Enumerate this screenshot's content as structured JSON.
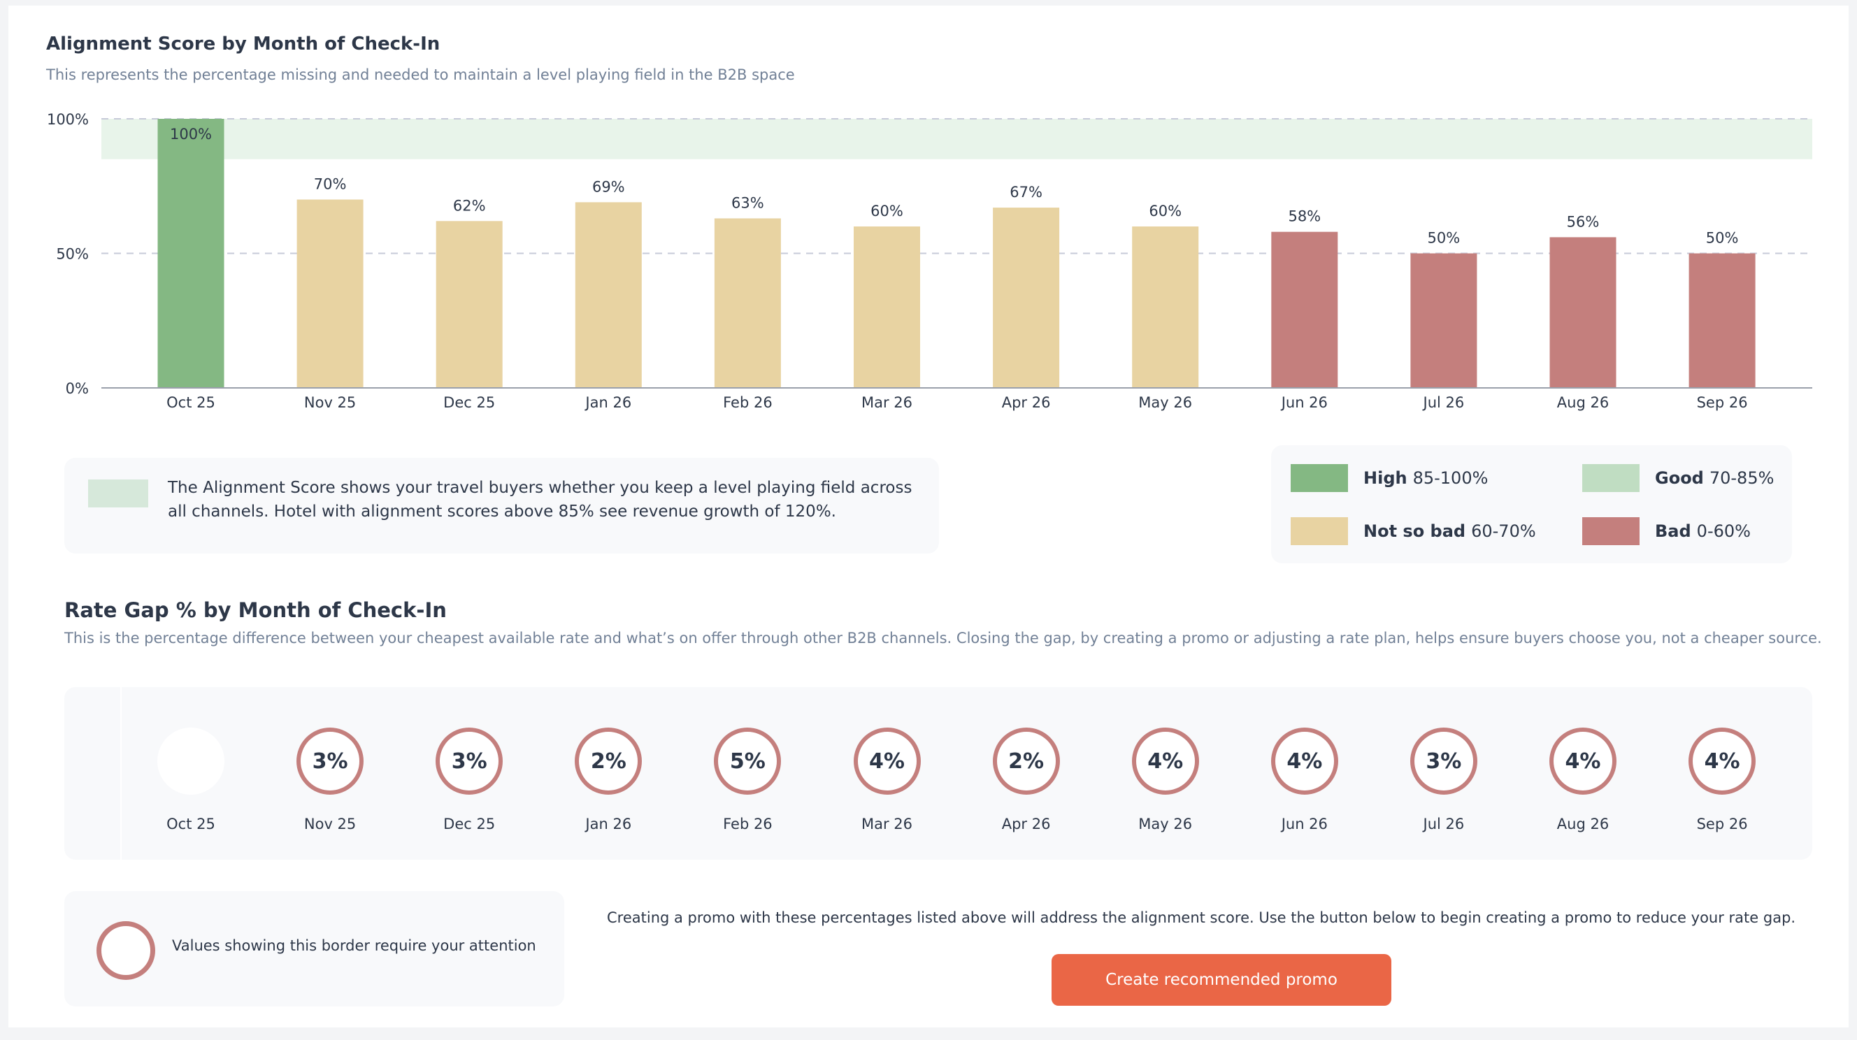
{
  "alignment": {
    "title": "Alignment Score by Month of Check-In",
    "subtitle": "This represents the percentage missing and needed to maintain a level playing field in the B2B space",
    "info_text": "The Alignment Score shows your travel buyers whether you keep a level playing field across all channels. Hotel with alignment scores above 85% see revenue growth of 120%.",
    "legend": [
      {
        "label": "High",
        "range": "85-100%",
        "color": "#84b883"
      },
      {
        "label": "Good",
        "range": "70-85%",
        "color": "#c0ddc2"
      },
      {
        "label": "Not so bad",
        "range": "60-70%",
        "color": "#e8d3a2"
      },
      {
        "label": "Bad",
        "range": "0-60%",
        "color": "#c47f7d"
      }
    ]
  },
  "chart_data": {
    "type": "bar",
    "title": "Alignment Score by Month of Check-In",
    "xlabel": "",
    "ylabel": "",
    "categories": [
      "Oct 25",
      "Nov 25",
      "Dec 25",
      "Jan 26",
      "Feb 26",
      "Mar 26",
      "Apr 26",
      "May 26",
      "Jun 26",
      "Jul 26",
      "Aug 26",
      "Sep 26"
    ],
    "values": [
      100,
      70,
      62,
      69,
      63,
      60,
      67,
      60,
      58,
      50,
      56,
      50
    ],
    "data_labels": [
      "100%",
      "70%",
      "62%",
      "69%",
      "63%",
      "60%",
      "67%",
      "60%",
      "58%",
      "50%",
      "56%",
      "50%"
    ],
    "bar_categories": [
      "High",
      "Not so bad",
      "Not so bad",
      "Not so bad",
      "Not so bad",
      "Not so bad",
      "Not so bad",
      "Not so bad",
      "Bad",
      "Bad",
      "Bad",
      "Bad"
    ],
    "bar_colors": [
      "#84b883",
      "#e8d3a2",
      "#e8d3a2",
      "#e8d3a2",
      "#e8d3a2",
      "#e8d3a2",
      "#e8d3a2",
      "#e8d3a2",
      "#c47f7d",
      "#c47f7d",
      "#c47f7d",
      "#c47f7d"
    ],
    "ylim": [
      0,
      100
    ],
    "yticks": [
      0,
      50,
      100
    ],
    "ytick_labels": [
      "0%",
      "50%",
      "100%"
    ],
    "grid": true,
    "target_band": {
      "from": 85,
      "to": 100,
      "color": "#e8f4ea"
    }
  },
  "rate_gap": {
    "title": "Rate Gap % by Month of Check-In",
    "subtitle": "This is the percentage difference between your cheapest available rate and what’s on offer through other B2B channels. Closing the gap, by creating a promo or adjusting a rate plan, helps ensure buyers choose you, not a cheaper source.",
    "items": [
      {
        "month": "Oct 25",
        "value": "",
        "attention": false
      },
      {
        "month": "Nov 25",
        "value": "3%",
        "attention": true
      },
      {
        "month": "Dec 25",
        "value": "3%",
        "attention": true
      },
      {
        "month": "Jan 26",
        "value": "2%",
        "attention": true
      },
      {
        "month": "Feb 26",
        "value": "5%",
        "attention": true
      },
      {
        "month": "Mar 26",
        "value": "4%",
        "attention": true
      },
      {
        "month": "Apr 26",
        "value": "2%",
        "attention": true
      },
      {
        "month": "May 26",
        "value": "4%",
        "attention": true
      },
      {
        "month": "Jun 26",
        "value": "4%",
        "attention": true
      },
      {
        "month": "Jul 26",
        "value": "3%",
        "attention": true
      },
      {
        "month": "Aug 26",
        "value": "4%",
        "attention": true
      },
      {
        "month": "Sep 26",
        "value": "4%",
        "attention": true
      }
    ],
    "attention_border_color": "#c47f7d",
    "attention_note": "Values showing this border require your attention",
    "promo_text": "Creating a promo with these percentages listed above will address the alignment score. Use the button below to begin creating a promo to reduce your rate gap.",
    "promo_button": "Create recommended promo",
    "promo_button_color": "#ea6646"
  }
}
